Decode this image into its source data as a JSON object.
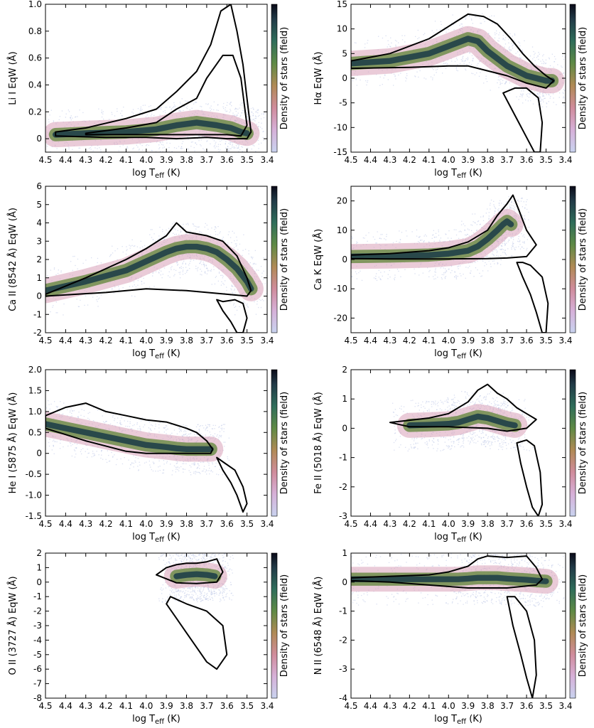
{
  "figure": {
    "colorbar_label": "Density of stars (field)",
    "xlabel_base": "log T",
    "xlabel_sub": "eff",
    "xlabel_unit": " (K)"
  },
  "chart_data": [
    {
      "type": "scatter",
      "panel": "li",
      "ylabel": "Li I EqW (Å)",
      "xlim": [
        4.5,
        3.4
      ],
      "ylim": [
        -0.1,
        1.0
      ],
      "xticks": [
        "4.5",
        "4.4",
        "4.3",
        "4.2",
        "4.1",
        "4.0",
        "3.9",
        "3.8",
        "3.7",
        "3.6",
        "3.5",
        "3.4"
      ],
      "yticks": [
        "0",
        "0.2",
        "0.4",
        "0.6",
        "0.8",
        "1.0"
      ],
      "density_trend": {
        "x": [
          4.45,
          4.3,
          4.1,
          3.95,
          3.85,
          3.75,
          3.65,
          3.58,
          3.53,
          3.5
        ],
        "y": [
          0.03,
          0.04,
          0.05,
          0.07,
          0.1,
          0.12,
          0.1,
          0.08,
          0.05,
          0.04
        ]
      },
      "contour_outer": {
        "x": [
          4.45,
          4.3,
          4.1,
          3.95,
          3.85,
          3.75,
          3.68,
          3.63,
          3.58,
          3.55,
          3.52,
          3.5,
          3.48,
          3.5,
          3.55,
          3.6,
          3.7,
          3.85,
          4.0,
          4.2,
          4.45
        ],
        "y": [
          0.05,
          0.08,
          0.15,
          0.22,
          0.35,
          0.5,
          0.7,
          0.95,
          1.0,
          0.8,
          0.55,
          0.3,
          0.05,
          0.0,
          0.0,
          0.0,
          0.01,
          0.0,
          0.01,
          0.01,
          0.02
        ]
      },
      "contour_inner": {
        "x": [
          4.3,
          4.1,
          3.95,
          3.85,
          3.75,
          3.7,
          3.62,
          3.57,
          3.53,
          3.5,
          3.53,
          3.6,
          3.75,
          3.95,
          4.3
        ],
        "y": [
          0.04,
          0.08,
          0.12,
          0.22,
          0.3,
          0.45,
          0.62,
          0.62,
          0.45,
          0.1,
          0.02,
          0.03,
          0.03,
          0.03,
          0.03
        ]
      }
    },
    {
      "type": "scatter",
      "panel": "halpha",
      "ylabel": "Hα EqW (Å)",
      "xlim": [
        4.5,
        3.4
      ],
      "ylim": [
        -15,
        15
      ],
      "xticks": [
        "4.5",
        "4.4",
        "4.3",
        "4.2",
        "4.1",
        "4.0",
        "3.9",
        "3.8",
        "3.7",
        "3.6",
        "3.5",
        "3.4"
      ],
      "yticks": [
        "-15",
        "-10",
        "-5",
        "0",
        "5",
        "10",
        "15"
      ],
      "density_trend": {
        "x": [
          4.5,
          4.3,
          4.1,
          4.0,
          3.9,
          3.85,
          3.8,
          3.75,
          3.7,
          3.65,
          3.6,
          3.55,
          3.5,
          3.47
        ],
        "y": [
          3,
          3.5,
          5,
          6.5,
          8,
          7.5,
          5.5,
          4,
          2.5,
          1.5,
          0.5,
          0,
          -0.5,
          -0.5
        ]
      },
      "contour_outer": {
        "x": [
          4.5,
          4.3,
          4.1,
          4.0,
          3.9,
          3.82,
          3.75,
          3.68,
          3.62,
          3.56,
          3.5,
          3.46,
          3.5,
          3.6,
          3.7,
          3.8,
          3.9,
          4.0,
          4.2,
          4.5
        ],
        "y": [
          3.5,
          5,
          8,
          10.5,
          13,
          12.5,
          11,
          8,
          5,
          2.5,
          0.5,
          -0.5,
          -2,
          -1,
          0.5,
          1.5,
          2.5,
          2.5,
          2.2,
          2
        ]
      },
      "contour_inner": {
        "x": [
          3.72,
          3.68,
          3.64,
          3.6,
          3.56,
          3.53,
          3.52,
          3.54,
          3.6,
          3.66,
          3.72
        ],
        "y": [
          -3,
          -6,
          -9,
          -12,
          -15,
          -15,
          -9,
          -4,
          -2,
          -2,
          -3
        ]
      }
    },
    {
      "type": "scatter",
      "panel": "ca8542",
      "ylabel": "Ca II (8542 Å) EqW (Å)",
      "xlim": [
        4.5,
        3.4
      ],
      "ylim": [
        -2,
        6
      ],
      "xticks": [
        "4.5",
        "4.4",
        "4.3",
        "4.2",
        "4.1",
        "4.0",
        "3.9",
        "3.8",
        "3.7",
        "3.6",
        "3.5",
        "3.4"
      ],
      "yticks": [
        "-2",
        "-1",
        "0",
        "1",
        "2",
        "3",
        "4",
        "5",
        "6"
      ],
      "density_trend": {
        "x": [
          4.5,
          4.3,
          4.1,
          4.0,
          3.9,
          3.85,
          3.8,
          3.75,
          3.7,
          3.65,
          3.6,
          3.55,
          3.5,
          3.48
        ],
        "y": [
          0.3,
          0.8,
          1.4,
          1.9,
          2.4,
          2.6,
          2.7,
          2.7,
          2.6,
          2.4,
          2.0,
          1.5,
          0.8,
          0.4
        ]
      },
      "contour_outer": {
        "x": [
          4.5,
          4.3,
          4.1,
          4.0,
          3.9,
          3.85,
          3.8,
          3.7,
          3.62,
          3.55,
          3.5,
          3.48,
          3.5,
          3.6,
          3.8,
          4.0,
          4.2,
          4.5
        ],
        "y": [
          0.1,
          1.0,
          2.0,
          2.6,
          3.3,
          4.0,
          3.5,
          3.3,
          3.0,
          2.2,
          1.0,
          0.3,
          0.0,
          0.1,
          0.3,
          0.4,
          0.2,
          0.0
        ]
      },
      "contour_inner": {
        "x": [
          3.65,
          3.62,
          3.58,
          3.55,
          3.52,
          3.5,
          3.52,
          3.56,
          3.62,
          3.65
        ],
        "y": [
          -0.2,
          -0.8,
          -1.4,
          -2.0,
          -2.0,
          -1.2,
          -0.4,
          -0.2,
          -0.3,
          -0.2
        ]
      }
    },
    {
      "type": "scatter",
      "panel": "cak",
      "ylabel": "Ca K EqW (Å)",
      "xlim": [
        4.5,
        3.4
      ],
      "ylim": [
        -25,
        25
      ],
      "xticks": [
        "4.5",
        "4.4",
        "4.3",
        "4.2",
        "4.1",
        "4.0",
        "3.9",
        "3.8",
        "3.7",
        "3.6",
        "3.5",
        "3.4"
      ],
      "yticks": [
        "-20",
        "-10",
        "0",
        "10",
        "20"
      ],
      "density_trend": {
        "x": [
          4.5,
          4.3,
          4.1,
          4.0,
          3.9,
          3.85,
          3.8,
          3.75,
          3.72,
          3.7,
          3.68
        ],
        "y": [
          1,
          1.2,
          1.5,
          2,
          3,
          4.5,
          7,
          10,
          12,
          13,
          12
        ]
      },
      "contour_outer": {
        "x": [
          4.5,
          4.3,
          4.1,
          4.0,
          3.9,
          3.8,
          3.75,
          3.7,
          3.67,
          3.64,
          3.6,
          3.55,
          3.6,
          3.7,
          3.8,
          4.0,
          4.3,
          4.5
        ],
        "y": [
          1.5,
          2,
          3,
          4,
          6,
          10,
          15,
          19,
          22,
          17,
          10,
          5,
          1,
          0.5,
          0.3,
          0.2,
          0.2,
          0.3
        ]
      },
      "contour_inner": {
        "x": [
          3.65,
          3.62,
          3.58,
          3.55,
          3.52,
          3.5,
          3.49,
          3.52,
          3.58,
          3.62,
          3.65
        ],
        "y": [
          -1,
          -6,
          -12,
          -18,
          -25,
          -25,
          -15,
          -6,
          -2,
          -1,
          -1
        ]
      }
    },
    {
      "type": "scatter",
      "panel": "he5875",
      "ylabel": "He I (5875 Å) EqW (Å)",
      "xlim": [
        4.5,
        3.4
      ],
      "ylim": [
        -1.5,
        2.0
      ],
      "xticks": [
        "4.5",
        "4.4",
        "4.3",
        "4.2",
        "4.1",
        "4.0",
        "3.9",
        "3.8",
        "3.7",
        "3.6",
        "3.5",
        "3.4"
      ],
      "yticks": [
        "-1.5",
        "-1.0",
        "-0.5",
        "0",
        "0.5",
        "1.0",
        "1.5",
        "2.0"
      ],
      "density_trend": {
        "x": [
          4.5,
          4.4,
          4.3,
          4.2,
          4.1,
          4.0,
          3.9,
          3.85,
          3.8,
          3.75,
          3.7,
          3.68
        ],
        "y": [
          0.7,
          0.6,
          0.5,
          0.4,
          0.3,
          0.2,
          0.15,
          0.12,
          0.1,
          0.1,
          0.1,
          0.1
        ]
      },
      "contour_outer": {
        "x": [
          4.5,
          4.4,
          4.3,
          4.2,
          4.1,
          4.0,
          3.9,
          3.8,
          3.75,
          3.7,
          3.67,
          3.68,
          3.8,
          3.9,
          4.0,
          4.1,
          4.3,
          4.5
        ],
        "y": [
          0.9,
          1.1,
          1.2,
          1.0,
          0.9,
          0.8,
          0.75,
          0.6,
          0.5,
          0.3,
          0.1,
          0.0,
          0.0,
          0.0,
          0.0,
          0.05,
          0.3,
          0.6
        ]
      },
      "contour_inner": {
        "x": [
          3.65,
          3.62,
          3.58,
          3.55,
          3.52,
          3.5,
          3.52,
          3.56,
          3.62,
          3.65
        ],
        "y": [
          -0.1,
          -0.4,
          -0.7,
          -1.0,
          -1.4,
          -1.2,
          -0.8,
          -0.4,
          -0.2,
          -0.1
        ]
      }
    },
    {
      "type": "scatter",
      "panel": "fe5018",
      "ylabel": "Fe II (5018 Å) EqW (Å)",
      "xlim": [
        4.5,
        3.4
      ],
      "ylim": [
        -3,
        2
      ],
      "xticks": [
        "4.5",
        "4.4",
        "4.3",
        "4.2",
        "4.1",
        "4.0",
        "3.9",
        "3.8",
        "3.7",
        "3.6",
        "3.5",
        "3.4"
      ],
      "yticks": [
        "-3",
        "-2",
        "-1",
        "0",
        "1",
        "2"
      ],
      "density_trend": {
        "x": [
          4.2,
          4.1,
          4.0,
          3.95,
          3.9,
          3.85,
          3.8,
          3.75,
          3.7,
          3.66
        ],
        "y": [
          0.1,
          0.12,
          0.15,
          0.2,
          0.3,
          0.4,
          0.35,
          0.25,
          0.15,
          0.1
        ]
      },
      "contour_outer": {
        "x": [
          4.3,
          4.1,
          4.0,
          3.9,
          3.85,
          3.8,
          3.75,
          3.7,
          3.65,
          3.6,
          3.55,
          3.6,
          3.7,
          3.8,
          4.0,
          4.2,
          4.3
        ],
        "y": [
          0.2,
          0.35,
          0.5,
          0.9,
          1.3,
          1.5,
          1.2,
          1.0,
          0.7,
          0.5,
          0.3,
          0.0,
          -0.1,
          0.0,
          0.05,
          0.05,
          0.2
        ]
      },
      "contour_inner": {
        "x": [
          3.65,
          3.63,
          3.6,
          3.57,
          3.54,
          3.52,
          3.53,
          3.56,
          3.6,
          3.65
        ],
        "y": [
          -0.5,
          -1.2,
          -2.0,
          -2.7,
          -3.0,
          -2.6,
          -1.5,
          -0.6,
          -0.4,
          -0.5
        ]
      }
    },
    {
      "type": "scatter",
      "panel": "o3727",
      "ylabel": "O II (3727 Å) EqW (Å)",
      "xlim": [
        4.5,
        3.4
      ],
      "ylim": [
        -8,
        2
      ],
      "xticks": [
        "4.5",
        "4.4",
        "4.3",
        "4.2",
        "4.1",
        "4.0",
        "3.9",
        "3.8",
        "3.7",
        "3.6",
        "3.5",
        "3.4"
      ],
      "yticks": [
        "-8",
        "-7",
        "-6",
        "-5",
        "-4",
        "-3",
        "-2",
        "-1",
        "0",
        "1",
        "2"
      ],
      "density_trend": {
        "x": [
          3.85,
          3.8,
          3.75,
          3.7,
          3.66
        ],
        "y": [
          0.4,
          0.5,
          0.55,
          0.5,
          0.4
        ]
      },
      "contour_outer": {
        "x": [
          3.95,
          3.9,
          3.85,
          3.8,
          3.75,
          3.7,
          3.65,
          3.62,
          3.65,
          3.75,
          3.85,
          3.95
        ],
        "y": [
          0.5,
          1.0,
          1.2,
          1.3,
          1.3,
          1.4,
          1.6,
          0.7,
          0.0,
          -0.1,
          -0.05,
          0.5
        ]
      },
      "contour_inner": {
        "x": [
          3.9,
          3.85,
          3.8,
          3.75,
          3.7,
          3.65,
          3.6,
          3.62,
          3.7,
          3.8,
          3.88,
          3.9
        ],
        "y": [
          -1.5,
          -2.5,
          -3.5,
          -4.5,
          -5.5,
          -6.0,
          -5.0,
          -3.0,
          -2.0,
          -1.5,
          -1.0,
          -1.5
        ]
      }
    },
    {
      "type": "scatter",
      "panel": "n6548",
      "ylabel": "N II (6548 Å) EqW (Å)",
      "xlim": [
        4.5,
        3.4
      ],
      "ylim": [
        -4,
        1
      ],
      "xticks": [
        "4.5",
        "4.4",
        "4.3",
        "4.2",
        "4.1",
        "4.0",
        "3.9",
        "3.8",
        "3.7",
        "3.6",
        "3.5",
        "3.4"
      ],
      "yticks": [
        "-4",
        "-3",
        "-2",
        "-1",
        "0",
        "1"
      ],
      "density_trend": {
        "x": [
          4.5,
          4.3,
          4.1,
          3.95,
          3.9,
          3.85,
          3.8,
          3.75,
          3.7,
          3.65,
          3.6,
          3.55,
          3.5
        ],
        "y": [
          0.1,
          0.1,
          0.1,
          0.1,
          0.12,
          0.15,
          0.15,
          0.15,
          0.12,
          0.1,
          0.08,
          0.05,
          0.03
        ]
      },
      "contour_outer": {
        "x": [
          4.5,
          4.3,
          4.1,
          4.0,
          3.9,
          3.85,
          3.8,
          3.7,
          3.6,
          3.55,
          3.52,
          3.55,
          3.7,
          3.9,
          4.1,
          4.3,
          4.5
        ],
        "y": [
          0.15,
          0.2,
          0.25,
          0.35,
          0.55,
          0.8,
          0.9,
          0.85,
          0.9,
          0.5,
          0.1,
          -0.1,
          -0.2,
          -0.2,
          -0.1,
          0.0,
          0.05
        ]
      },
      "contour_inner": {
        "x": [
          3.7,
          3.67,
          3.63,
          3.6,
          3.57,
          3.55,
          3.56,
          3.6,
          3.66,
          3.7
        ],
        "y": [
          -0.5,
          -1.5,
          -2.5,
          -3.3,
          -4.0,
          -3.2,
          -2.0,
          -1.0,
          -0.5,
          -0.5
        ]
      }
    }
  ]
}
